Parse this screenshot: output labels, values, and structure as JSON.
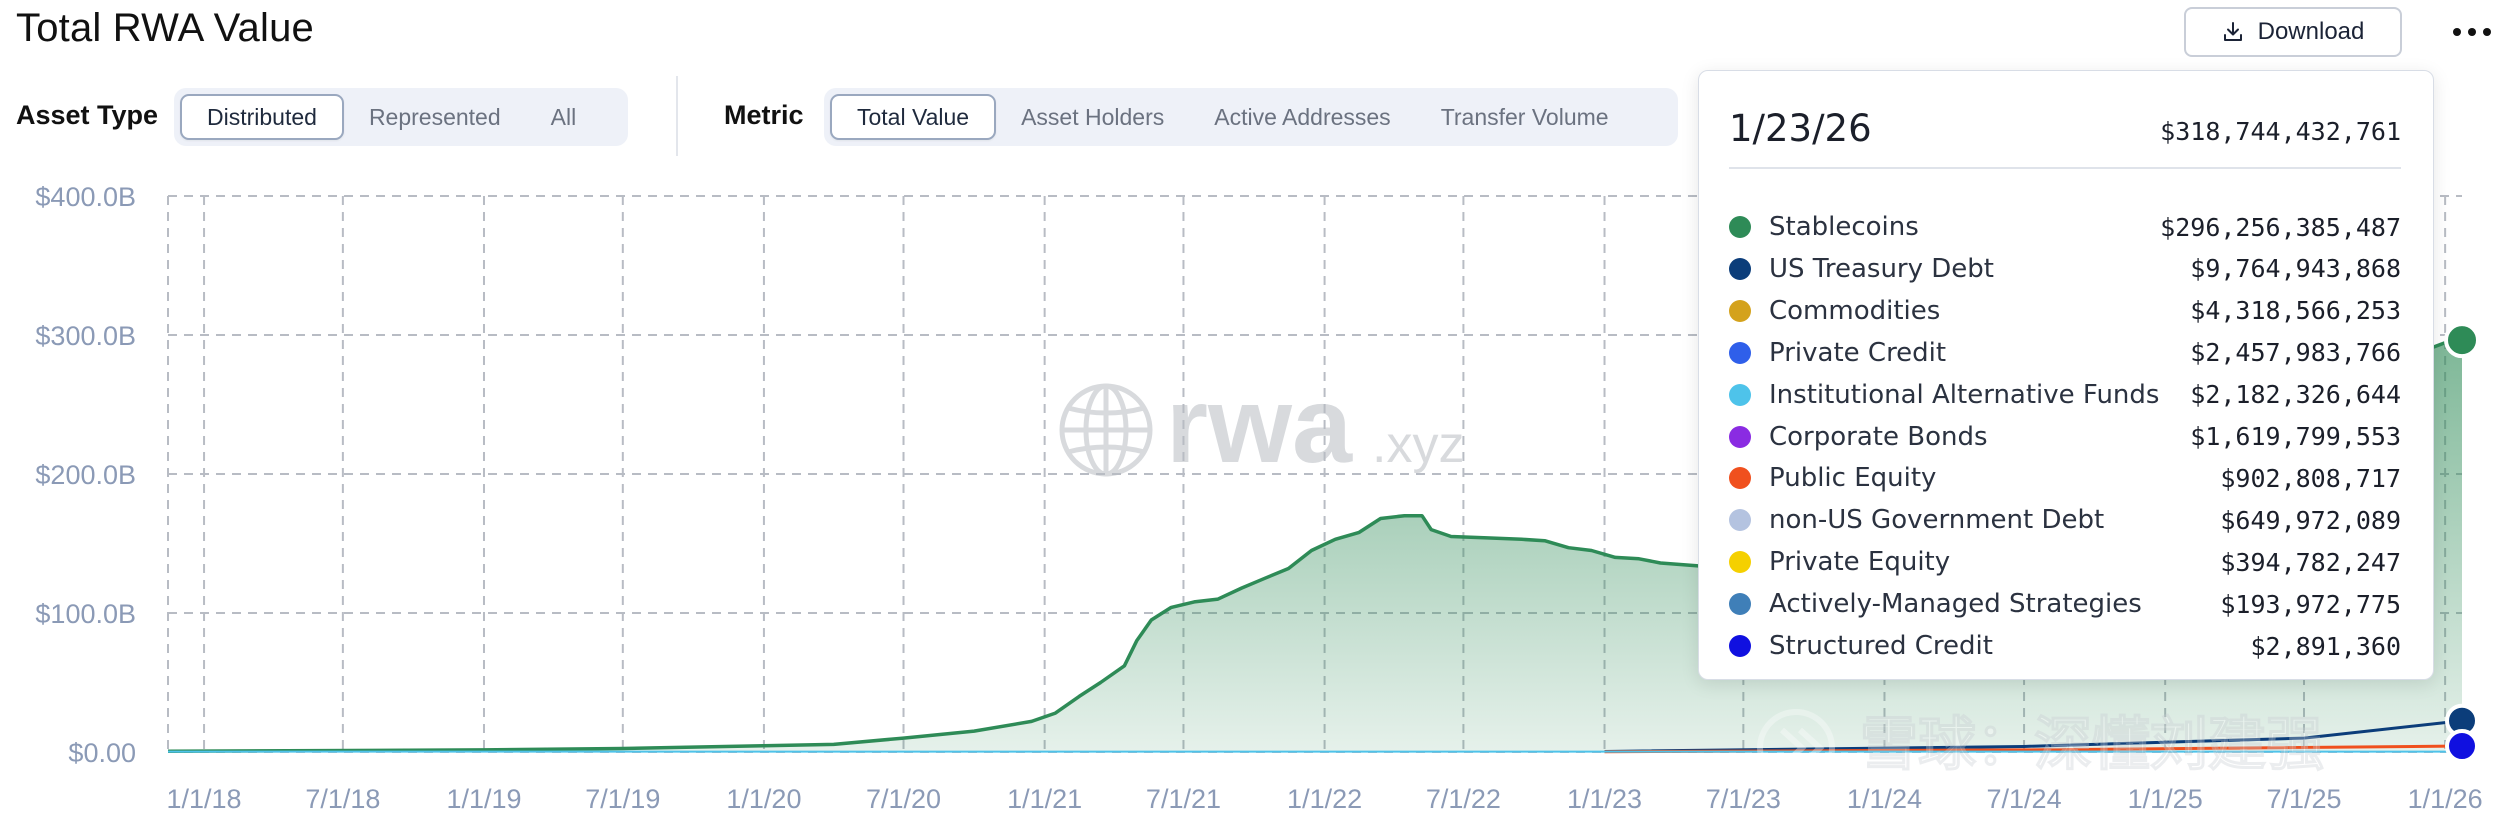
{
  "header": {
    "title": "Total RWA Value",
    "download_label": "Download",
    "more_icon": "more-horizontal-icon"
  },
  "controls": {
    "asset_type_label": "Asset Type",
    "asset_type_options": [
      {
        "label": "Distributed",
        "active": true
      },
      {
        "label": "Represented",
        "active": false
      },
      {
        "label": "All",
        "active": false
      }
    ],
    "metric_label": "Metric",
    "metric_options": [
      {
        "label": "Total Value",
        "active": true
      },
      {
        "label": "Asset Holders",
        "active": false
      },
      {
        "label": "Active Addresses",
        "active": false
      },
      {
        "label": "Transfer Volume",
        "active": false
      }
    ]
  },
  "watermark": {
    "logo_text": "rwa",
    "logo_suffix": ".xyz",
    "corner_text": "雪球：深懂刘建强"
  },
  "tooltip": {
    "date": "1/23/26",
    "total": "$318,744,432,761",
    "rows": [
      {
        "name": "Stablecoins",
        "value": "$296,256,385,487",
        "color": "#2e8b57"
      },
      {
        "name": "US Treasury Debt",
        "value": "$9,764,943,868",
        "color": "#0b3d7a"
      },
      {
        "name": "Commodities",
        "value": "$4,318,566,253",
        "color": "#d4a21c"
      },
      {
        "name": "Private Credit",
        "value": "$2,457,983,766",
        "color": "#2f5fea"
      },
      {
        "name": "Institutional Alternative Funds",
        "value": "$2,182,326,644",
        "color": "#4ec3ea"
      },
      {
        "name": "Corporate Bonds",
        "value": "$1,619,799,553",
        "color": "#8a2be2"
      },
      {
        "name": "Public Equity",
        "value": "$902,808,717",
        "color": "#f0501e"
      },
      {
        "name": "non-US Government Debt",
        "value": "$649,972,089",
        "color": "#b4c3e0"
      },
      {
        "name": "Private Equity",
        "value": "$394,782,247",
        "color": "#f5d000"
      },
      {
        "name": "Actively-Managed Strategies",
        "value": "$193,972,775",
        "color": "#3f7fb8"
      },
      {
        "name": "Structured Credit",
        "value": "$2,891,360",
        "color": "#1010e0"
      }
    ]
  },
  "chart_data": {
    "type": "area",
    "x_unit": "date",
    "y_unit": "USD billions",
    "y_range": [
      0,
      400
    ],
    "y_ticks": [
      0,
      100,
      200,
      300,
      400
    ],
    "y_tick_labels": [
      "$0.00",
      "$100.0B",
      "$200.0B",
      "$300.0B",
      "$400.0B"
    ],
    "x_range": [
      "2017-11-15",
      "2026-01-23"
    ],
    "x_ticks": [
      "2018-01-01",
      "2018-07-01",
      "2019-01-01",
      "2019-07-01",
      "2020-01-01",
      "2020-07-01",
      "2021-01-01",
      "2021-07-01",
      "2022-01-01",
      "2022-07-01",
      "2023-01-01",
      "2023-07-01",
      "2024-01-01",
      "2024-07-01",
      "2025-01-01",
      "2025-07-01",
      "2026-01-01"
    ],
    "x_tick_labels": [
      "1/1/18",
      "7/1/18",
      "1/1/19",
      "7/1/19",
      "1/1/20",
      "7/1/20",
      "1/1/21",
      "7/1/21",
      "1/1/22",
      "7/1/22",
      "1/1/23",
      "7/1/23",
      "1/1/24",
      "7/1/24",
      "1/1/25",
      "7/1/25",
      "1/1/26"
    ],
    "grid": true,
    "series": [
      {
        "name": "Stablecoins",
        "color": "#2e8b57",
        "points": [
          [
            "2017-11-15",
            0.5
          ],
          [
            "2018-06-01",
            1.0
          ],
          [
            "2019-01-01",
            1.5
          ],
          [
            "2019-07-01",
            2.5
          ],
          [
            "2020-01-01",
            4.5
          ],
          [
            "2020-04-01",
            5.5
          ],
          [
            "2020-07-01",
            10
          ],
          [
            "2020-10-01",
            15
          ],
          [
            "2020-12-15",
            22
          ],
          [
            "2021-01-15",
            28
          ],
          [
            "2021-02-15",
            40
          ],
          [
            "2021-03-15",
            50
          ],
          [
            "2021-04-15",
            62
          ],
          [
            "2021-05-01",
            80
          ],
          [
            "2021-05-20",
            95
          ],
          [
            "2021-06-15",
            104
          ],
          [
            "2021-07-15",
            108
          ],
          [
            "2021-08-15",
            110
          ],
          [
            "2021-09-15",
            118
          ],
          [
            "2021-10-15",
            125
          ],
          [
            "2021-11-15",
            132
          ],
          [
            "2021-12-15",
            145
          ],
          [
            "2022-01-15",
            153
          ],
          [
            "2022-02-15",
            158
          ],
          [
            "2022-03-15",
            168
          ],
          [
            "2022-04-15",
            170
          ],
          [
            "2022-05-08",
            170
          ],
          [
            "2022-05-20",
            160
          ],
          [
            "2022-06-15",
            155
          ],
          [
            "2022-08-01",
            154
          ],
          [
            "2022-09-15",
            153
          ],
          [
            "2022-10-15",
            152
          ],
          [
            "2022-11-15",
            147
          ],
          [
            "2022-12-15",
            145
          ],
          [
            "2023-01-15",
            140
          ],
          [
            "2023-02-15",
            139
          ],
          [
            "2023-03-15",
            136
          ],
          [
            "2023-05-01",
            134
          ],
          [
            "2023-07-01",
            131
          ]
        ],
        "end_value": 296.3
      }
    ],
    "hover": {
      "date": "2026-01-23",
      "stacked_total": 318.7
    }
  }
}
